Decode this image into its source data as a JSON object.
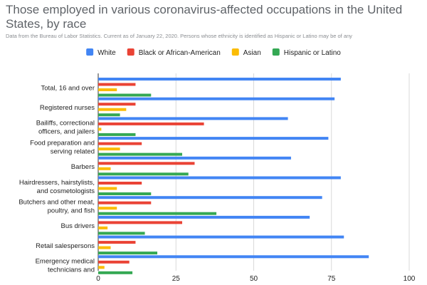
{
  "colors": {
    "white": "#4285f4",
    "black": "#ea4335",
    "asian": "#fbbc04",
    "hispanic": "#34a853",
    "grid": "#d9d9d9",
    "axis": "#333333",
    "text": "#222222"
  },
  "chart_data": {
    "type": "bar",
    "orientation": "horizontal",
    "title": "Those employed in various coronavirus-affected occupations in the United States, by race",
    "subtitle": "Data from the Bureau of Labor Statistics. Current as of  January 22, 2020. Persons whose ethnicity is identified as Hispanic or Latino may be of any",
    "legend_position": "top",
    "xlim": [
      0,
      100
    ],
    "xticks": [
      0,
      25,
      50,
      75,
      100
    ],
    "grid": true,
    "categories": [
      [
        "Total, 16 and over"
      ],
      [
        "Registered nurses"
      ],
      [
        "Bailiffs, correctional",
        "officers, and jailers"
      ],
      [
        "Food preparation and",
        "serving related"
      ],
      [
        "Barbers"
      ],
      [
        "Hairdressers, hairstylists,",
        "and cosmetologists"
      ],
      [
        "Butchers and other meat,",
        "poultry, and fish"
      ],
      [
        "Bus drivers"
      ],
      [
        "Retail salespersons"
      ],
      [
        "Emergency medical",
        "technicians and"
      ]
    ],
    "series": [
      {
        "name": "White",
        "color_key": "white",
        "values": [
          78,
          76,
          61,
          74,
          62,
          78,
          72,
          68,
          79,
          87
        ]
      },
      {
        "name": "Black or African-American",
        "color_key": "black",
        "values": [
          12,
          12,
          34,
          14,
          31,
          14,
          17,
          27,
          12,
          10
        ]
      },
      {
        "name": "Asian",
        "color_key": "asian",
        "values": [
          6,
          9,
          1,
          7,
          4,
          6,
          6,
          3,
          4,
          2
        ]
      },
      {
        "name": "Hispanic or Latino",
        "color_key": "hispanic",
        "values": [
          17,
          7,
          12,
          27,
          29,
          17,
          38,
          15,
          19,
          11
        ]
      }
    ]
  }
}
